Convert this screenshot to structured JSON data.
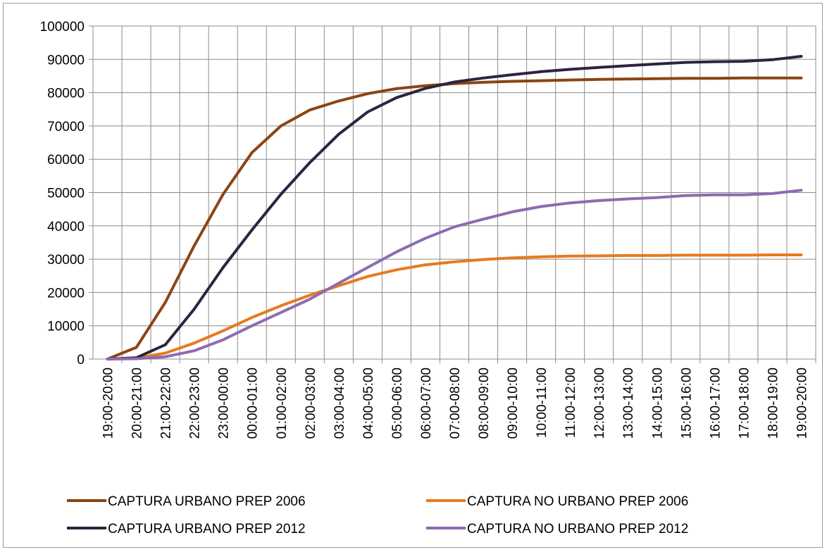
{
  "chart_data": {
    "type": "line",
    "title": "",
    "xlabel": "",
    "ylabel": "",
    "ylim": [
      0,
      100000
    ],
    "yticks": [
      0,
      10000,
      20000,
      30000,
      40000,
      50000,
      60000,
      70000,
      80000,
      90000,
      100000
    ],
    "grid": true,
    "legend_position": "bottom",
    "categories": [
      "19:00-20:00",
      "20:00-21:00",
      "21:00-22:00",
      "22:00-23:00",
      "23:00-00:00",
      "00:00-01:00",
      "01:00-02:00",
      "02:00-03:00",
      "03:00-04:00",
      "04:00-05:00",
      "05:00-06:00",
      "06:00-07:00",
      "07:00-08:00",
      "08:00-09:00",
      "09:00-10:00",
      "10:00-11:00",
      "11:00-12:00",
      "12:00-13:00",
      "13:00-14:00",
      "14:00-15:00",
      "15:00-16:00",
      "16:00-17:00",
      "17:00-18:00",
      "18:00-19:00",
      "19:00-20:00"
    ],
    "series": [
      {
        "name": "CAPTURA URBANO PREP 2006",
        "color": "#8B4513",
        "values": [
          0,
          3500,
          17000,
          34000,
          49500,
          62000,
          70000,
          74800,
          77500,
          79700,
          81200,
          82100,
          82700,
          83100,
          83400,
          83600,
          83800,
          84000,
          84100,
          84200,
          84300,
          84300,
          84400,
          84400,
          84400
        ]
      },
      {
        "name": "CAPTURA NO URBANO PREP 2006",
        "color": "#E87A1E",
        "values": [
          0,
          300,
          1800,
          4800,
          8500,
          12500,
          16000,
          19200,
          22000,
          24800,
          26800,
          28300,
          29200,
          29900,
          30400,
          30700,
          30900,
          31000,
          31100,
          31100,
          31200,
          31200,
          31200,
          31300,
          31300
        ]
      },
      {
        "name": "CAPTURA URBANO PREP 2012",
        "color": "#2E2340",
        "values": [
          0,
          400,
          4300,
          15000,
          27500,
          38800,
          49500,
          59000,
          67500,
          74200,
          78500,
          81300,
          83200,
          84400,
          85400,
          86300,
          87000,
          87600,
          88100,
          88600,
          89100,
          89300,
          89400,
          89900,
          90900
        ]
      },
      {
        "name": "CAPTURA NO URBANO PREP 2012",
        "color": "#8E6BB0",
        "values": [
          0,
          100,
          700,
          2500,
          5800,
          10000,
          14000,
          18000,
          22800,
          27500,
          32200,
          36300,
          39700,
          42000,
          44200,
          45800,
          46900,
          47600,
          48100,
          48500,
          49100,
          49300,
          49300,
          49700,
          50700
        ]
      }
    ]
  }
}
